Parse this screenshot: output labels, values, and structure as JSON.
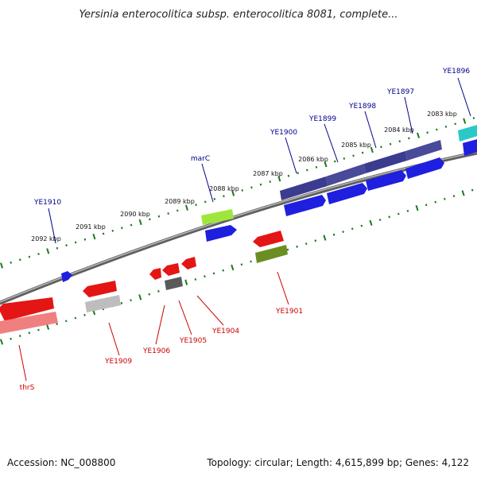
{
  "title": "Yersinia enterocolitica subsp. enterocolitica 8081, complete...",
  "footer": {
    "accession": "Accession: NC_008800",
    "summary": "Topology: circular; Length: 4,615,899 bp; Genes: 4,122"
  },
  "colors": {
    "backbone": "#7a7a7a",
    "tick": "#1a7a1a",
    "label_forward": "#00008b",
    "label_reverse": "#cc0000",
    "kbp_text": "#111111"
  },
  "kbp_labels": [
    "2083 kbp",
    "2084 kbp",
    "2085 kbp",
    "2086 kbp",
    "2087 kbp",
    "2088 kbp",
    "2089 kbp",
    "2090 kbp",
    "2091 kbp",
    "2092 kbp"
  ],
  "forward_labels": [
    "YE1896",
    "YE1897",
    "YE1898",
    "YE1899",
    "YE1900",
    "marC",
    "YE1910"
  ],
  "reverse_labels": [
    "YE1901",
    "YE1904",
    "YE1905",
    "YE1906",
    "YE1909",
    "thrS"
  ],
  "legend_genes": [
    {
      "name": "YE1896",
      "strand": "+",
      "color": "#2bc8c8"
    },
    {
      "name": "YE1897",
      "strand": "+",
      "color": "#1f1fe0"
    },
    {
      "name": "YE1898",
      "strand": "+",
      "color": "#1f1fe0"
    },
    {
      "name": "YE1899",
      "strand": "+",
      "color": "#1f1fe0"
    },
    {
      "name": "YE1900",
      "strand": "+",
      "color": "#1f1fe0"
    },
    {
      "name": "marC",
      "strand": "+",
      "color": "#1f1fe0"
    },
    {
      "name": "YE1910",
      "strand": "+",
      "color": "#1f1fe0"
    },
    {
      "name": "YE1901",
      "strand": "-",
      "color": "#e41515"
    },
    {
      "name": "YE1904",
      "strand": "-",
      "color": "#e41515"
    },
    {
      "name": "YE1905",
      "strand": "-",
      "color": "#e41515"
    },
    {
      "name": "YE1906",
      "strand": "-",
      "color": "#e41515"
    },
    {
      "name": "YE1909",
      "strand": "-",
      "color": "#e41515"
    },
    {
      "name": "thrS",
      "strand": "-",
      "color": "#e41515"
    }
  ]
}
